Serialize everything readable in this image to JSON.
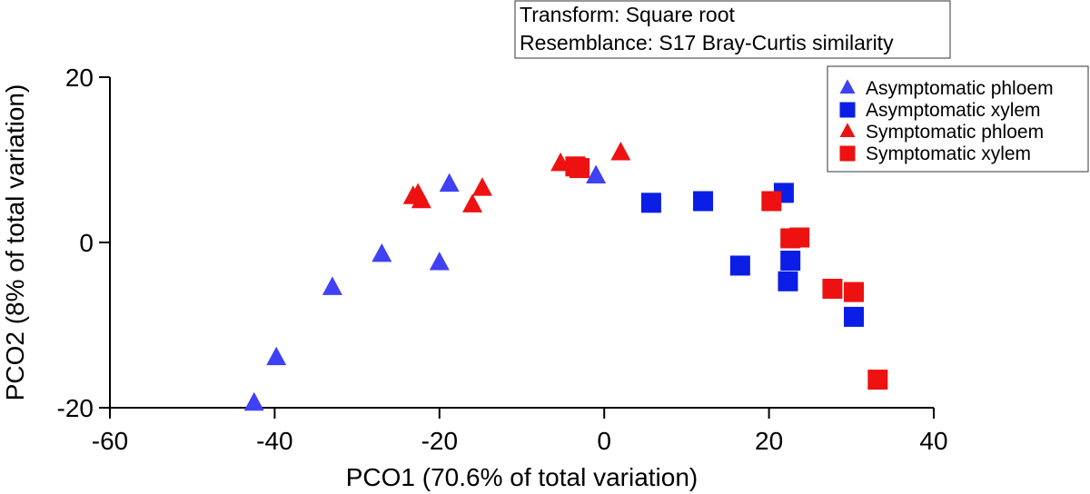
{
  "chart_data": {
    "type": "scatter",
    "info_box": [
      "Transform: Square root",
      "Resemblance: S17 Bray-Curtis similarity"
    ],
    "xlabel": "PCO1 (70.6% of total variation)",
    "ylabel": "PCO2 (8% of total variation)",
    "xlim": [
      -60,
      40
    ],
    "ylim": [
      -20,
      20
    ],
    "xticks": [
      -60,
      -40,
      -20,
      0,
      20,
      40
    ],
    "yticks": [
      -20,
      0,
      20
    ],
    "legend_position": "top-right",
    "series": [
      {
        "name": "Asymptomatic phloem",
        "marker": "triangle",
        "color": "#4040f5",
        "points": [
          [
            -42.5,
            -19.5
          ],
          [
            -39.8,
            -14
          ],
          [
            -33,
            -5.5
          ],
          [
            -27,
            -1.5
          ],
          [
            -20,
            -2.5
          ],
          [
            -18.8,
            7
          ],
          [
            -1,
            8
          ]
        ]
      },
      {
        "name": "Asymptomatic xylem",
        "marker": "square",
        "color": "#0a1ee6",
        "points": [
          [
            5.7,
            4.8
          ],
          [
            12,
            5
          ],
          [
            16.5,
            -2.8
          ],
          [
            21.8,
            6
          ],
          [
            22.3,
            -4.7
          ],
          [
            22.6,
            -2.2
          ],
          [
            30.3,
            -9
          ]
        ]
      },
      {
        "name": "Symptomatic phloem",
        "marker": "triangle",
        "color": "#ee1111",
        "points": [
          [
            -23.2,
            5.5
          ],
          [
            -22.6,
            5.8
          ],
          [
            -22.2,
            5
          ],
          [
            -16,
            4.5
          ],
          [
            -14.8,
            6.5
          ],
          [
            -5.3,
            9.5
          ],
          [
            2,
            10.8
          ]
        ]
      },
      {
        "name": "Symptomatic xylem",
        "marker": "square",
        "color": "#ee1111",
        "points": [
          [
            -3.5,
            9.2
          ],
          [
            -3,
            9
          ],
          [
            20.3,
            5
          ],
          [
            22.6,
            0.5
          ],
          [
            23.7,
            0.6
          ],
          [
            27.7,
            -5.6
          ],
          [
            30.3,
            -6
          ],
          [
            33.2,
            -16.6
          ]
        ]
      }
    ]
  }
}
